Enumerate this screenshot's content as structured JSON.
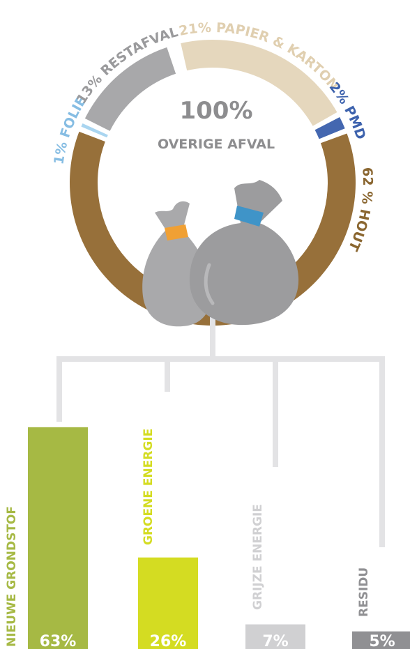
{
  "chart_data": [
    {
      "type": "donut",
      "center_value": "100%",
      "center_label": "OVERIGE AFVAL",
      "categories": [
        "PAPIER & KARTON",
        "PMD",
        "HOUT",
        "FOLIE",
        "RESTAFVAL"
      ],
      "values": [
        21,
        2,
        62,
        1,
        13
      ],
      "value_labels": [
        "21%",
        "2%",
        "62 %",
        "1%",
        "13%"
      ],
      "colors": [
        "#e5d7bd",
        "#4467b0",
        "#97703a",
        "#a9d5f0",
        "#a8a8aa"
      ],
      "label_colors": [
        "#e0cfb0",
        "#3d62ad",
        "#8a6630",
        "#86bde3",
        "#9a9a9c"
      ]
    },
    {
      "type": "bar",
      "categories": [
        "NIEUWE GRONDSTOF",
        "GROENE ENERGIE",
        "GRIJZE ENERGIE",
        "RESIDU"
      ],
      "values": [
        63,
        26,
        7,
        5
      ],
      "value_labels": [
        "63%",
        "26%",
        "7%",
        "5%"
      ],
      "colors": [
        "#a6b944",
        "#d4dc22",
        "#d0d0d2",
        "#909093"
      ]
    }
  ]
}
